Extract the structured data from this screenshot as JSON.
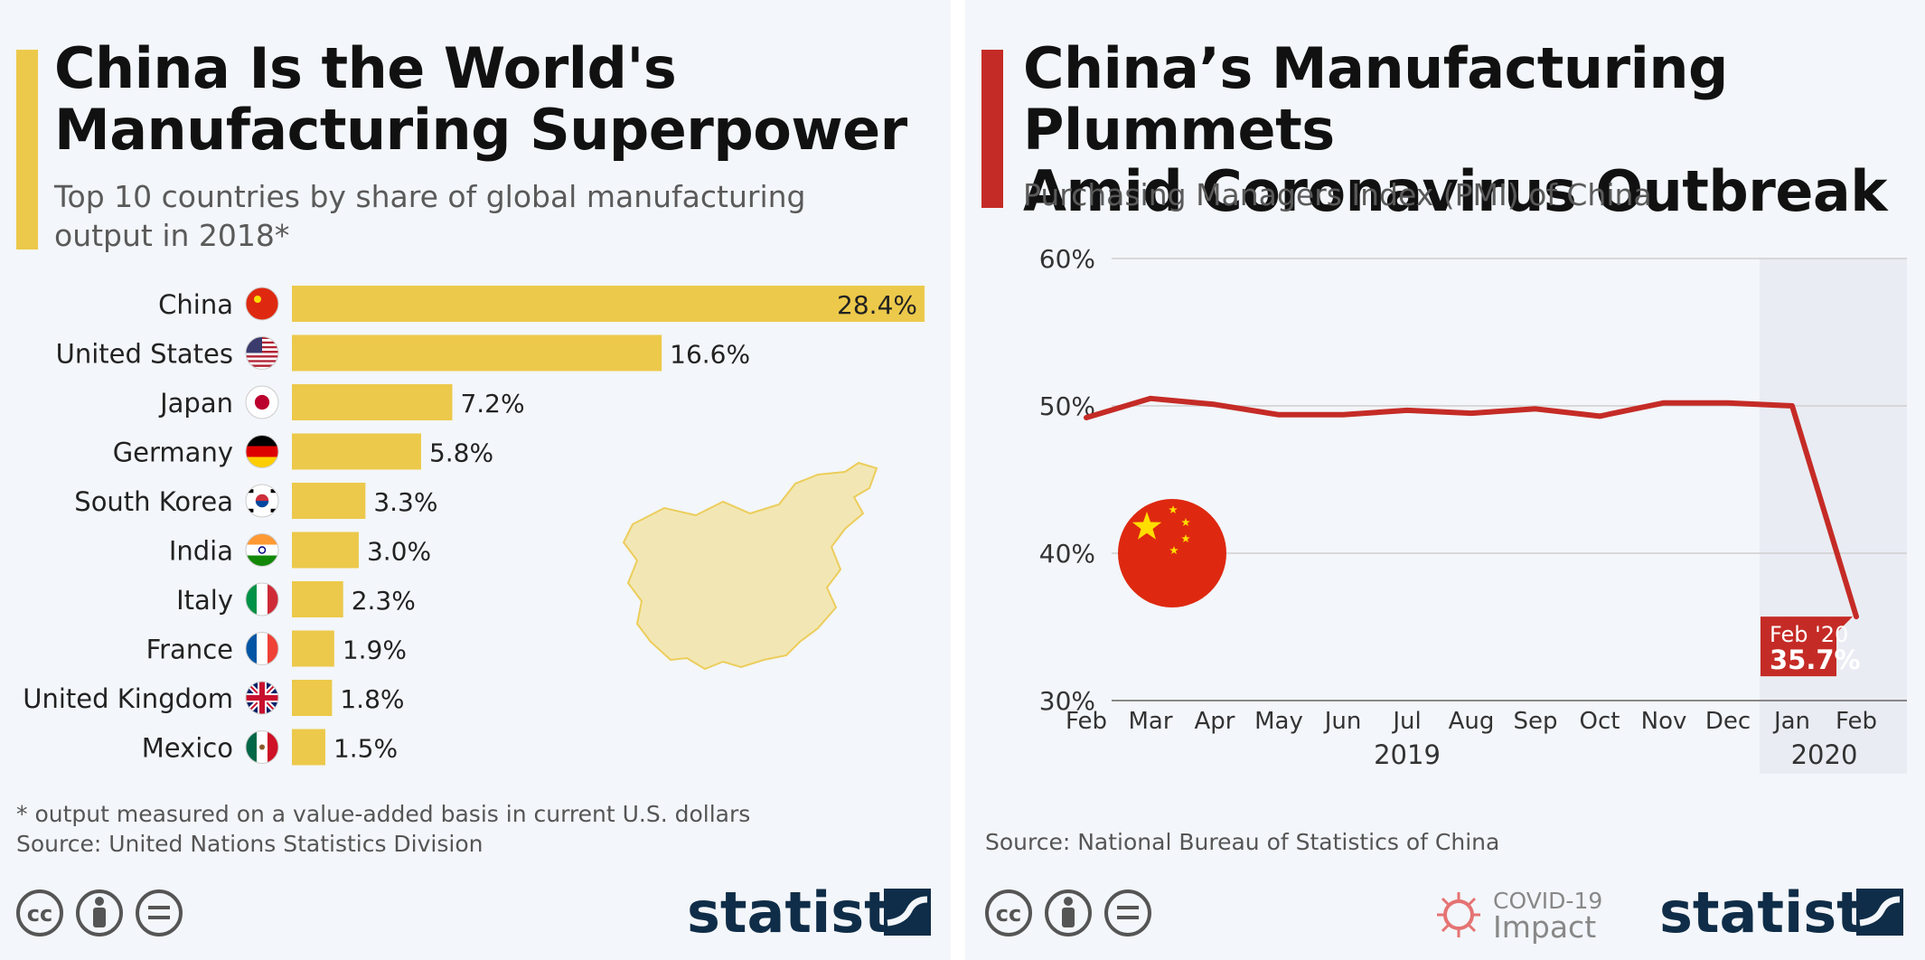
{
  "left_panel": {
    "title_line1": "China Is the World's",
    "title_line2": "Manufacturing Superpower",
    "subtitle_line1": "Top 10 countries by share of global manufacturing",
    "subtitle_line2": "output in 2018*",
    "footnote": "* output measured on a value-added basis in current U.S. dollars",
    "source": "Source: United Nations Statistics Division",
    "brand": "statista"
  },
  "right_panel": {
    "title_line1": "China’s Manufacturing Plummets",
    "title_line2": "Amid Coronavirus Outbreak",
    "subtitle": "Purchasing Managers Index (PMI) of China",
    "source": "Source: National Bureau of Statistics of China",
    "covid_line1": "COVID-19",
    "covid_line2": "Impact",
    "brand": "statista"
  },
  "colors": {
    "bar": "#ecc94b",
    "line": "#c52b26",
    "accent_left": "#ecc94b",
    "accent_right": "#c52b26",
    "brand": "#0f2d48"
  },
  "chart_data": [
    {
      "type": "bar",
      "orientation": "horizontal",
      "categories": [
        "China",
        "United States",
        "Japan",
        "Germany",
        "South Korea",
        "India",
        "Italy",
        "France",
        "United Kingdom",
        "Mexico"
      ],
      "values": [
        28.4,
        16.6,
        7.2,
        5.8,
        3.3,
        3.0,
        2.3,
        1.9,
        1.8,
        1.5
      ],
      "value_labels": [
        "28.4%",
        "16.6%",
        "7.2%",
        "5.8%",
        "3.3%",
        "3.0%",
        "2.3%",
        "1.9%",
        "1.8%",
        "1.5%"
      ],
      "flags": [
        "china-flag-icon",
        "us-flag-icon",
        "japan-flag-icon",
        "germany-flag-icon",
        "south-korea-flag-icon",
        "india-flag-icon",
        "italy-flag-icon",
        "france-flag-icon",
        "uk-flag-icon",
        "mexico-flag-icon"
      ],
      "unit": "%",
      "grid": false
    },
    {
      "type": "line",
      "x": [
        "Feb",
        "Mar",
        "Apr",
        "May",
        "Jun",
        "Jul",
        "Aug",
        "Sep",
        "Oct",
        "Nov",
        "Dec",
        "Jan",
        "Feb"
      ],
      "year_labels": [
        "2019",
        "2020"
      ],
      "series": [
        {
          "values": [
            49.2,
            50.5,
            50.1,
            49.4,
            49.4,
            49.7,
            49.5,
            49.8,
            49.3,
            50.2,
            50.2,
            50.0,
            35.7
          ]
        }
      ],
      "ylim": [
        30,
        60
      ],
      "yticks": [
        "30%",
        "40%",
        "50%",
        "60%"
      ],
      "highlight_region": [
        "Jan",
        "Feb"
      ],
      "callout_label": "Feb '20",
      "callout_value": "35.7%",
      "grid": true
    }
  ]
}
